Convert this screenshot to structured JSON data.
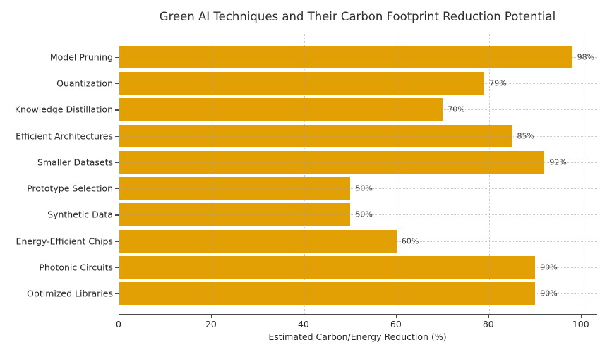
{
  "chart_data": {
    "type": "bar",
    "orientation": "horizontal",
    "title": "Green AI Techniques and Their Carbon Footprint Reduction Potential",
    "xlabel": "Estimated Carbon/Energy Reduction (%)",
    "categories": [
      "Model Pruning",
      "Quantization",
      "Knowledge Distillation",
      "Efficient Architectures",
      "Smaller Datasets",
      "Prototype Selection",
      "Synthetic Data",
      "Energy-Efficient Chips",
      "Photonic Circuits",
      "Optimized Libraries"
    ],
    "values": [
      98,
      79,
      70,
      85,
      92,
      50,
      50,
      60,
      90,
      90
    ],
    "value_labels": [
      "98%",
      "79%",
      "70%",
      "85%",
      "92%",
      "50%",
      "50%",
      "60%",
      "90%",
      "90%"
    ],
    "xticks": [
      "0",
      "20",
      "40",
      "60",
      "80",
      "100"
    ],
    "xtick_values": [
      0,
      20,
      40,
      60,
      80,
      100
    ],
    "xlim": [
      0,
      103.4
    ],
    "grid": "dotted",
    "legend": "none",
    "bar_color": "#E2A005",
    "text_color": "#262626",
    "axis_color": "#4a4a4a",
    "grid_color": "#9e9e9e"
  }
}
